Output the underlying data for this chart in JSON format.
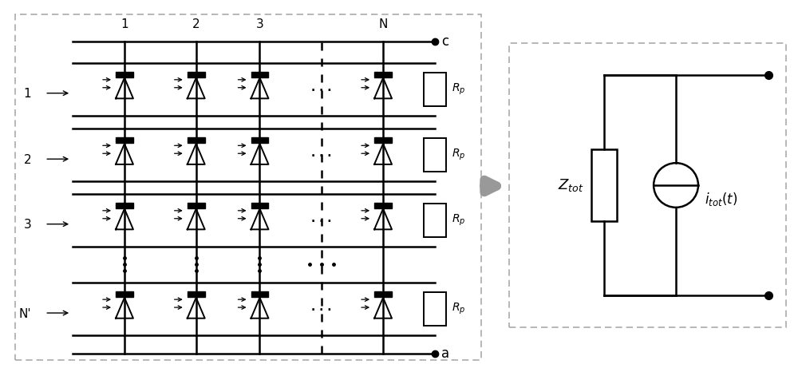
{
  "fig_width": 10.0,
  "fig_height": 4.66,
  "dpi": 100,
  "bg_color": "#ffffff",
  "line_color": "#000000",
  "border_color": "#aaaaaa",
  "arrow_gray": "#999999",
  "col_labels": [
    "1",
    "2",
    "3",
    "N"
  ],
  "row_labels": [
    "1",
    "2",
    "3",
    "N'"
  ],
  "terminal_c": "c",
  "terminal_a": "a",
  "rp_label": "R_p",
  "ztot_label": "Z_{tot}",
  "itot_label": "i_{tot}(t)"
}
